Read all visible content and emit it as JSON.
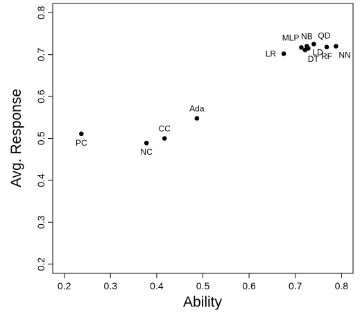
{
  "chart_data": {
    "type": "scatter",
    "title": "",
    "xlabel": "Ability",
    "ylabel": "Avg. Response",
    "xlim": [
      0.175,
      0.825
    ],
    "ylim": [
      0.178,
      0.822
    ],
    "xticks": [
      "0.2",
      "0.3",
      "0.4",
      "0.5",
      "0.6",
      "0.7",
      "0.8"
    ],
    "yticks": [
      "0.2",
      "0.3",
      "0.4",
      "0.5",
      "0.6",
      "0.7",
      "0.8"
    ],
    "grid": false,
    "points": [
      {
        "label": "PC",
        "x": 0.237,
        "y": 0.511,
        "label_pos": "below"
      },
      {
        "label": "NC",
        "x": 0.378,
        "y": 0.489,
        "label_pos": "below"
      },
      {
        "label": "CC",
        "x": 0.417,
        "y": 0.5,
        "label_pos": "above"
      },
      {
        "label": "Ada",
        "x": 0.487,
        "y": 0.548,
        "label_pos": "above"
      },
      {
        "label": "LR",
        "x": 0.675,
        "y": 0.702,
        "label_pos": "left"
      },
      {
        "label": "MLP",
        "x": 0.713,
        "y": 0.717,
        "label_pos": "above-left"
      },
      {
        "label": "NB",
        "x": 0.725,
        "y": 0.72,
        "label_pos": "above"
      },
      {
        "label": "DT",
        "x": 0.721,
        "y": 0.711,
        "label_pos": "below-right"
      },
      {
        "label": "QD",
        "x": 0.74,
        "y": 0.725,
        "label_pos": "above-right"
      },
      {
        "label": "LD",
        "x": 0.728,
        "y": 0.715,
        "label_pos": "right"
      },
      {
        "label": "RF",
        "x": 0.768,
        "y": 0.718,
        "label_pos": "below"
      },
      {
        "label": "NN",
        "x": 0.788,
        "y": 0.72,
        "label_pos": "below-right"
      }
    ]
  }
}
